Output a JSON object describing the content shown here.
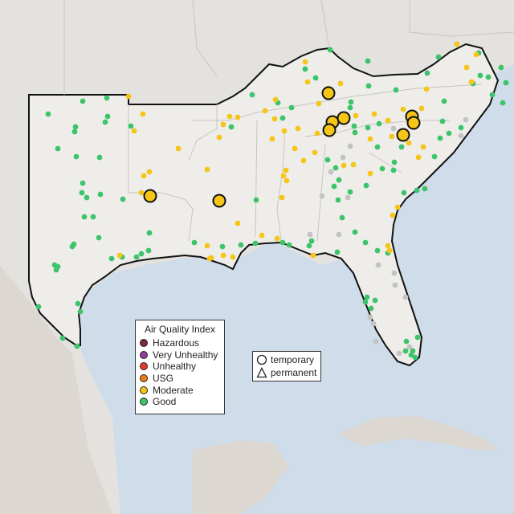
{
  "legend": {
    "title": "Air Quality Index",
    "categories": [
      {
        "label": "Hazardous",
        "color": "#7e2c36"
      },
      {
        "label": "Very Unhealthy",
        "color": "#8f3f97"
      },
      {
        "label": "Unhealthy",
        "color": "#e53a2b"
      },
      {
        "label": "USG",
        "color": "#ee7d14"
      },
      {
        "label": "Moderate",
        "color": "#f5c518"
      },
      {
        "label": "Good",
        "color": "#3cc46a"
      }
    ],
    "shapes": [
      {
        "label": "temporary",
        "shape": "circle"
      },
      {
        "label": "permanent",
        "shape": "triangle"
      }
    ]
  },
  "colors": {
    "water": "#cfdcea",
    "land_in": "#ece9e6",
    "land_out": "#e3e1dd",
    "border": "#111111",
    "nodata": "#c3c3c3"
  }
}
